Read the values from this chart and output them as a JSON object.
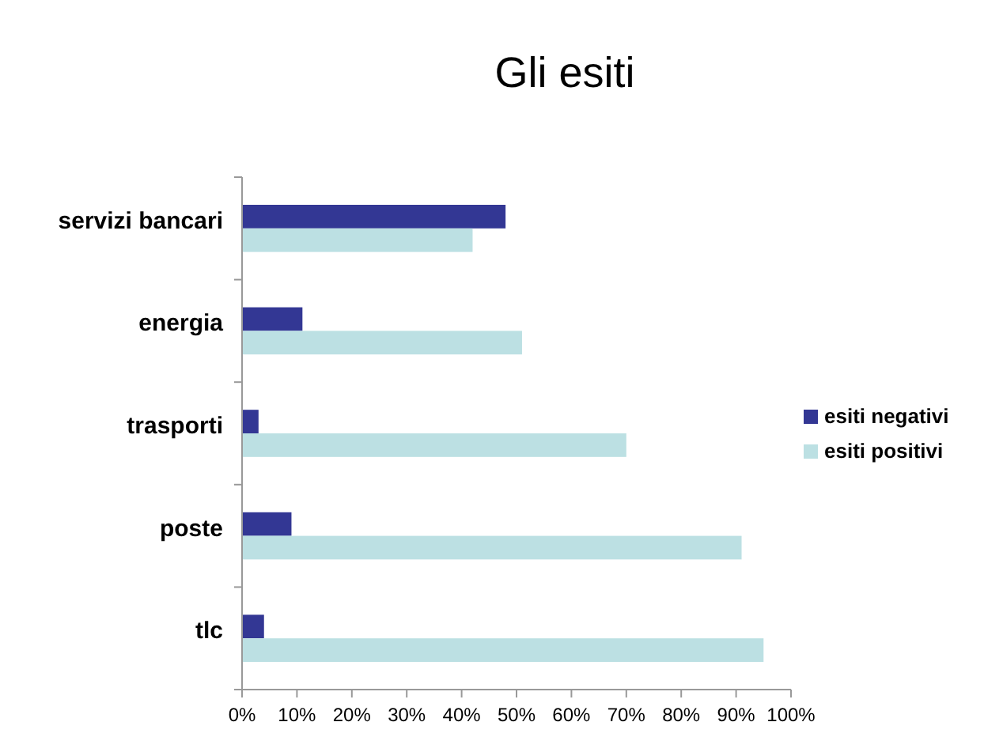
{
  "chart_data": {
    "type": "bar",
    "orientation": "horizontal",
    "title": "Gli esiti",
    "categories": [
      "servizi bancari",
      "energia",
      "trasporti",
      "poste",
      "tlc"
    ],
    "series": [
      {
        "name": "esiti negativi",
        "color": "#333794",
        "values": [
          48,
          11,
          3,
          9,
          4
        ]
      },
      {
        "name": "esiti positivi",
        "color": "#bce0e3",
        "values": [
          42,
          51,
          70,
          91,
          95
        ]
      }
    ],
    "xlim": [
      0,
      100
    ],
    "xticks": [
      {
        "value": 0,
        "label": "0%"
      },
      {
        "value": 10,
        "label": "10%"
      },
      {
        "value": 20,
        "label": "20%"
      },
      {
        "value": 30,
        "label": "30%"
      },
      {
        "value": 40,
        "label": "40%"
      },
      {
        "value": 50,
        "label": "50%"
      },
      {
        "value": 60,
        "label": "60%"
      },
      {
        "value": 70,
        "label": "70%"
      },
      {
        "value": 80,
        "label": "80%"
      },
      {
        "value": 90,
        "label": "90%"
      },
      {
        "value": 100,
        "label": "100%"
      }
    ],
    "grid": false,
    "legend": "right"
  }
}
